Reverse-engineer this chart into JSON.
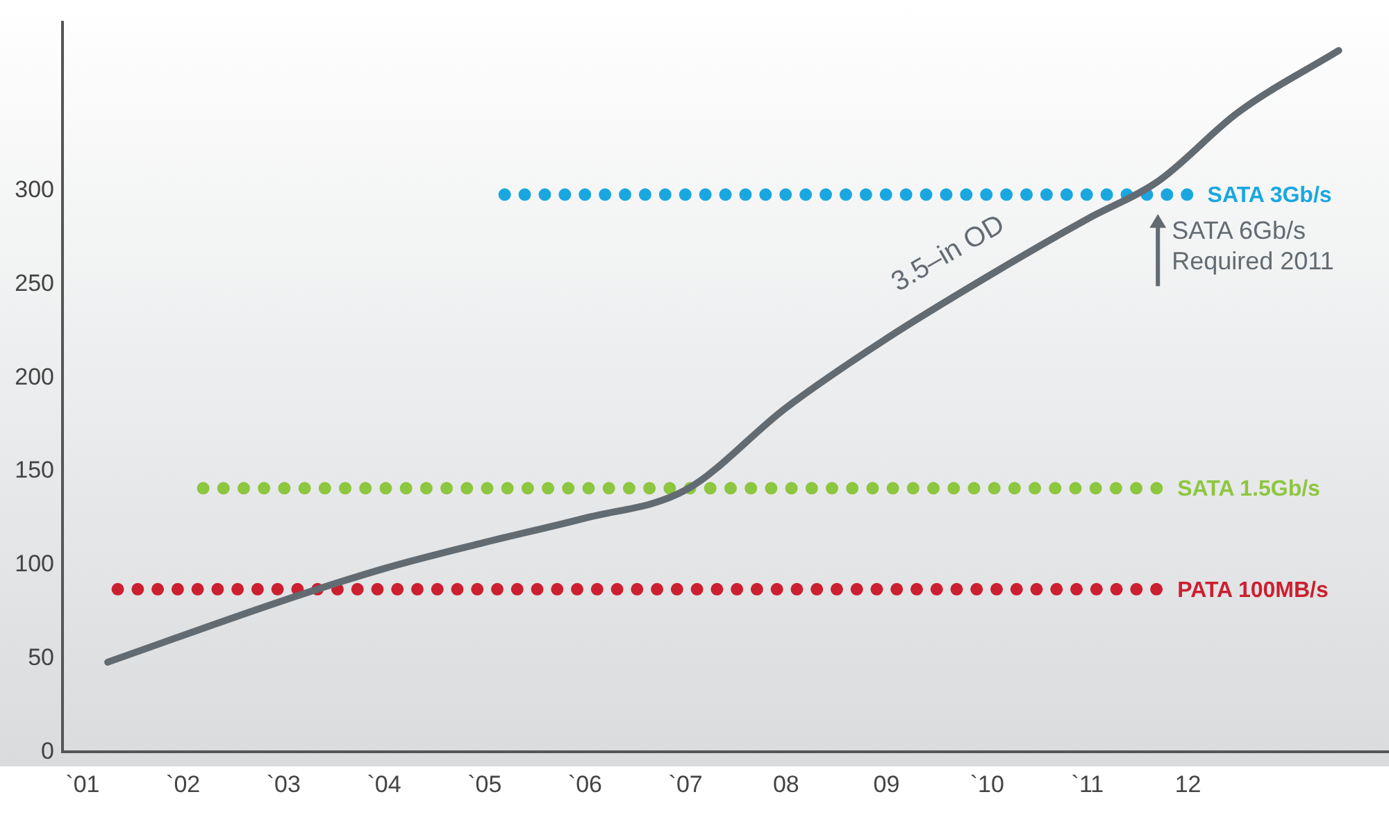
{
  "chart_data": {
    "type": "line",
    "x": [
      1.25,
      3,
      4,
      5,
      6,
      7,
      8,
      9,
      10,
      11,
      11.7,
      12.5,
      13.5
    ],
    "series": [
      {
        "name": "3.5–in OD",
        "color": "#636b72",
        "line_style": "solid",
        "values": [
          48,
          81,
          98,
          112,
          125,
          140,
          184,
          221,
          254,
          285,
          305,
          342,
          375
        ]
      },
      {
        "name": "SATA 3Gb/s",
        "color": "#1aa7e0",
        "line_style": "dotted",
        "x": [
          5.2,
          12
        ],
        "values": [
          298,
          298
        ]
      },
      {
        "name": "SATA 1.5Gb/s",
        "color": "#8dc63f",
        "line_style": "dotted",
        "x": [
          2.2,
          11.7
        ],
        "values": [
          141,
          141
        ]
      },
      {
        "name": "PATA 100MB/s",
        "color": "#cc1f2f",
        "line_style": "dotted",
        "x": [
          1.35,
          11.7
        ],
        "values": [
          87,
          87
        ]
      }
    ],
    "xlim": [
      0.8,
      14
    ],
    "xticks": [
      {
        "value": 1,
        "label": "`01"
      },
      {
        "value": 2,
        "label": "`02"
      },
      {
        "value": 3,
        "label": "`03"
      },
      {
        "value": 4,
        "label": "`04"
      },
      {
        "value": 5,
        "label": "`05"
      },
      {
        "value": 6,
        "label": "`06"
      },
      {
        "value": 7,
        "label": "`07"
      },
      {
        "value": 8,
        "label": "08"
      },
      {
        "value": 9,
        "label": "09"
      },
      {
        "value": 10,
        "label": "`10"
      },
      {
        "value": 11,
        "label": "`11"
      },
      {
        "value": 12,
        "label": "12"
      }
    ],
    "ylim": [
      0,
      390
    ],
    "yticks": [
      0,
      50,
      100,
      150,
      200,
      250,
      300
    ],
    "annotations": [
      {
        "text": "SATA 6Gb/s\nRequired 2011",
        "x": 11.7,
        "y": 298
      }
    ],
    "grid": false,
    "legend": false,
    "marker": "none"
  }
}
